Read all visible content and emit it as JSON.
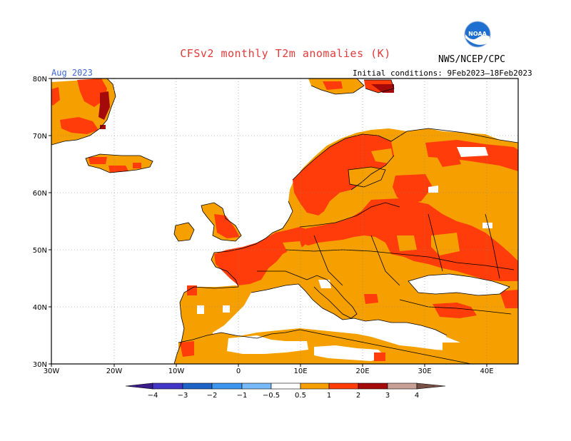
{
  "header": {
    "title": "CFSv2 monthly T2m anomalies (K)",
    "month": "Aug 2023",
    "initial_conditions": "Initial conditions: 9Feb2023–18Feb2023",
    "agency": "NWS/NCEP/CPC",
    "logo_text": "NOAA"
  },
  "map": {
    "lon_labels": [
      "30W",
      "20W",
      "10W",
      "0",
      "10E",
      "20E",
      "30E",
      "40E"
    ],
    "lat_labels": [
      "80N",
      "70N",
      "60N",
      "50N",
      "40N",
      "30N"
    ]
  },
  "legend": {
    "levels": [
      "−4",
      "−3",
      "−2",
      "−1",
      "−0.5",
      "0.5",
      "1",
      "2",
      "3",
      "4"
    ],
    "colors": {
      "below_min": "#3a1c8c",
      "m4_m3": "#4236c8",
      "m3_m2": "#1e64c8",
      "m2_m1": "#3c96f0",
      "m1_m05": "#78b9fa",
      "neutral": "#ffffff",
      "p05_p1": "#f5a000",
      "p1_p2": "#ff3c0a",
      "p2_p3": "#a50a0a",
      "p3_p4": "#c8a096",
      "above_max": "#785046"
    }
  },
  "colors": {
    "ocean": "#ffffff",
    "anomaly_05_1": "#f5a000",
    "anomaly_1_2": "#ff3c0a",
    "anomaly_2_3": "#a50a0a",
    "title_red": "#e23a3a",
    "month_blue": "#3c66d8"
  }
}
